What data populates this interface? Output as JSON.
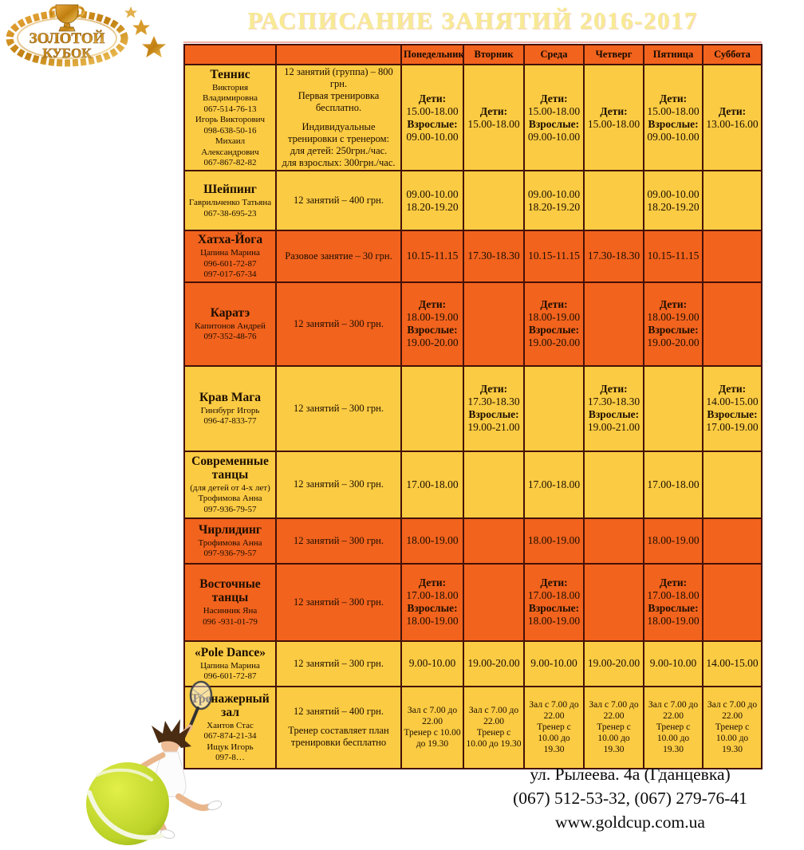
{
  "colors": {
    "band_yellow": "#fbcb43",
    "band_orange": "#f2631d",
    "table_border": "#451108",
    "title_text": "#f7ea93",
    "logo_gold": "#c8860b",
    "ball_green": "#b6cc26"
  },
  "logo": {
    "top_text": "ЗОЛОТОЙ",
    "bottom_text": "КУБОК"
  },
  "title": "РАСПИСАНИЕ ЗАНЯТИЙ 2016-2017",
  "table": {
    "days": [
      "Понедельник",
      "Вторник",
      "Среда",
      "Четверг",
      "Пятница",
      "Суббота"
    ],
    "rows": [
      {
        "id": "tennis",
        "band": "yellow",
        "name": "Теннис",
        "details": [
          "Виктория Владимировна",
          "067-514-76-13",
          "Игорь Викторович",
          "098-638-50-16",
          "Михаил Александрович",
          "067-867-82-82"
        ],
        "price": [
          "12 занятий (группа) – 800 грн.",
          "Первая тренировка бесплатно.",
          "",
          "Индивидуальные тренировки с тренером:",
          "для детей: 250грн./час.",
          "для взрослых: 300грн./час."
        ],
        "schedule": [
          [
            {
              "t": "Дети:",
              "b": true
            },
            "15.00-18.00",
            {
              "t": "Взрослые:",
              "b": true
            },
            "09.00-10.00"
          ],
          [
            {
              "t": "Дети:",
              "b": true
            },
            "15.00-18.00"
          ],
          [
            {
              "t": "Дети:",
              "b": true
            },
            "15.00-18.00",
            {
              "t": "Взрослые:",
              "b": true
            },
            "09.00-10.00"
          ],
          [
            {
              "t": "Дети:",
              "b": true
            },
            "15.00-18.00"
          ],
          [
            {
              "t": "Дети:",
              "b": true
            },
            "15.00-18.00",
            {
              "t": "Взрослые:",
              "b": true
            },
            "09.00-10.00"
          ],
          [
            {
              "t": "Дети:",
              "b": true
            },
            "13.00-16.00"
          ]
        ]
      },
      {
        "id": "shaping",
        "band": "yellow",
        "name": "Шейпинг",
        "details": [
          "Гаврильченко Татьяна",
          "067-38-695-23"
        ],
        "price": [
          "12 занятий – 400 грн."
        ],
        "schedule": [
          [
            "09.00-10.00",
            "18.20-19.20"
          ],
          [],
          [
            "09.00-10.00",
            "18.20-19.20"
          ],
          [],
          [
            "09.00-10.00",
            "18.20-19.20"
          ],
          []
        ]
      },
      {
        "id": "hatha-yoga",
        "band": "orange",
        "name": "Хатха-Йога",
        "details": [
          "Цапина Марина",
          "096-601-72-87",
          "097-017-67-34"
        ],
        "price": [
          "Разовое занятие – 30 грн."
        ],
        "schedule": [
          [
            "10.15-11.15"
          ],
          [
            "17.30-18.30"
          ],
          [
            "10.15-11.15"
          ],
          [
            "17.30-18.30"
          ],
          [
            "10.15-11.15"
          ],
          []
        ]
      },
      {
        "id": "karate",
        "band": "orange",
        "name": "Каратэ",
        "details": [
          "Капитонов Андрей",
          "097-352-48-76"
        ],
        "price": [
          "12 занятий – 300 грн."
        ],
        "schedule": [
          [
            {
              "t": "Дети:",
              "b": true
            },
            "18.00-19.00",
            {
              "t": "Взрослые:",
              "b": true
            },
            "19.00-20.00"
          ],
          [],
          [
            {
              "t": "Дети:",
              "b": true
            },
            "18.00-19.00",
            {
              "t": "Взрослые:",
              "b": true
            },
            "19.00-20.00"
          ],
          [],
          [
            {
              "t": "Дети:",
              "b": true
            },
            "18.00-19.00",
            {
              "t": "Взрослые:",
              "b": true
            },
            "19.00-20.00"
          ],
          []
        ]
      },
      {
        "id": "krav-maga",
        "band": "yellow",
        "name": "Крав Мага",
        "details": [
          "Гинзбург Игорь",
          "096-47-833-77"
        ],
        "price": [
          "12 занятий – 300 грн."
        ],
        "schedule": [
          [],
          [
            {
              "t": "Дети:",
              "b": true
            },
            "17.30-18.30",
            {
              "t": "Взрослые:",
              "b": true
            },
            "19.00-21.00"
          ],
          [],
          [
            {
              "t": "Дети:",
              "b": true
            },
            "17.30-18.30",
            {
              "t": "Взрослые:",
              "b": true
            },
            "19.00-21.00"
          ],
          [],
          [
            {
              "t": "Дети:",
              "b": true
            },
            "14.00-15.00",
            {
              "t": "Взрослые:",
              "b": true
            },
            "17.00-19.00"
          ]
        ]
      },
      {
        "id": "modern-dance",
        "band": "yellow",
        "name": "Современные танцы",
        "details": [
          "(для детей от 4-х лет)",
          "Трофимова Анна",
          "097-936-79-57"
        ],
        "price": [
          "12 занятий – 300 грн."
        ],
        "schedule": [
          [
            "17.00-18.00"
          ],
          [],
          [
            "17.00-18.00"
          ],
          [],
          [
            "17.00-18.00"
          ],
          []
        ]
      },
      {
        "id": "cheerleading",
        "band": "orange",
        "name": "Чирлидинг",
        "details": [
          "Трофимова Анна",
          "097-936-79-57"
        ],
        "price": [
          "12 занятий – 300 грн."
        ],
        "schedule": [
          [
            "18.00-19.00"
          ],
          [],
          [
            "18.00-19.00"
          ],
          [],
          [
            "18.00-19.00"
          ],
          []
        ]
      },
      {
        "id": "oriental-dance",
        "band": "orange",
        "name": "Восточные танцы",
        "details": [
          "Насинник Яна",
          "096 -931-01-79"
        ],
        "price": [
          "12 занятий – 300 грн."
        ],
        "schedule": [
          [
            {
              "t": "Дети:",
              "b": true
            },
            "17.00-18.00",
            {
              "t": "Взрослые:",
              "b": true
            },
            "18.00-19.00"
          ],
          [],
          [
            {
              "t": "Дети:",
              "b": true
            },
            "17.00-18.00",
            {
              "t": "Взрослые:",
              "b": true
            },
            "18.00-19.00"
          ],
          [],
          [
            {
              "t": "Дети:",
              "b": true
            },
            "17.00-18.00",
            {
              "t": "Взрослые:",
              "b": true
            },
            "18.00-19.00"
          ],
          []
        ]
      },
      {
        "id": "pole-dance",
        "band": "yellow",
        "name": "«Pole Dance»",
        "details": [
          "Цапина Марина",
          "096-601-72-87"
        ],
        "price": [
          "12 занятий – 300 грн."
        ],
        "schedule": [
          [
            "9.00-10.00"
          ],
          [
            "19.00-20.00"
          ],
          [
            "9.00-10.00"
          ],
          [
            "19.00-20.00"
          ],
          [
            "9.00-10.00"
          ],
          [
            "14.00-15.00"
          ]
        ]
      },
      {
        "id": "gym",
        "band": "yellow",
        "name": "Тренажерный зал",
        "details": [
          "Хаитов Стас",
          "067-874-21-34",
          "Ищук Игорь",
          "097-8…"
        ],
        "price": [
          "12 занятий – 400 грн.",
          "",
          "Тренер составляет план тренировки бесплатно"
        ],
        "schedule": [
          [
            "Зал с 7.00 до 22.00",
            "Тренер с 10.00 до 19.30"
          ],
          [
            "Зал с 7.00 до 22.00",
            "Тренер с 10.00 до 19.30"
          ],
          [
            "Зал с 7.00 до 22.00",
            "Тренер с 10.00 до 19.30"
          ],
          [
            "Зал с 7.00 до 22.00",
            "Тренер с 10.00 до 19.30"
          ],
          [
            "Зал с 7.00 до 22.00",
            "Тренер с 10.00 до 19.30"
          ],
          [
            "Зал с 7.00 до 22.00",
            "Тренер с 10.00 до 19.30"
          ]
        ]
      }
    ]
  },
  "footer": {
    "address": "ул. Рылеева. 4а (Гданцевка)",
    "phones": "(067) 512-53-32, (067) 279-76-41",
    "website": "www.goldcup.com.ua"
  }
}
